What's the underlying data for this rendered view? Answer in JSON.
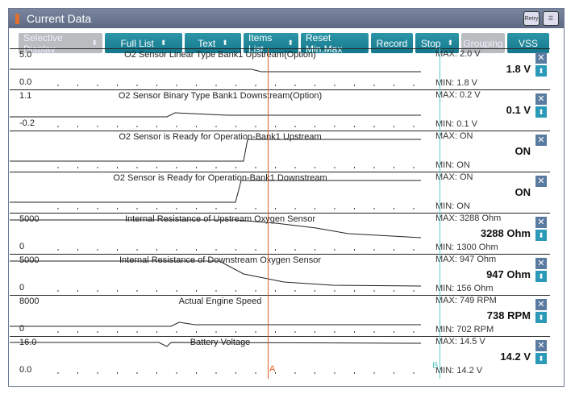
{
  "title": "Current Data",
  "title_buttons": [
    "Retry",
    "layout"
  ],
  "toolbar": [
    {
      "label": "Selective Display",
      "arrows": true,
      "disabled": true
    },
    {
      "label": "Full List",
      "arrows": true
    },
    {
      "label": "Text",
      "arrows": true
    },
    {
      "label": "Items List",
      "arrows": true
    },
    {
      "label": "Reset Min.Max"
    },
    {
      "label": "Record"
    },
    {
      "label": "Stop",
      "arrows": true
    },
    {
      "label": "Grouping",
      "disabled": true
    },
    {
      "label": "VSS"
    }
  ],
  "cursors": {
    "a": "A",
    "b": "B",
    "a_color": "#e06020",
    "b_color": "#60c8c8"
  },
  "rows": [
    {
      "name": "O2 Sensor Linear Type Bank1 Upstream(Option)",
      "ymax": "5.0",
      "ymin": "0.0",
      "max": "MAX:   2.0 V",
      "value": "1.8 V",
      "min": "MIN:   1.8 V",
      "updown": true
    },
    {
      "name": "O2 Sensor Binary Type Bank1 Downstream(Option)",
      "ymax": "1.1",
      "ymin": "-0.2",
      "max": "MAX:   0.2 V",
      "value": "0.1 V",
      "min": "MIN:   0.1 V",
      "updown": true
    },
    {
      "name": "O2 Sensor is Ready for Operation-Bank1 Upstream",
      "ymax": "",
      "ymin": "",
      "max": "MAX: ON",
      "value": "ON",
      "min": "MIN: ON",
      "updown": false
    },
    {
      "name": "O2 Sensor is Ready for Operation-Bank1 Downstream",
      "ymax": "",
      "ymin": "",
      "max": "MAX: ON",
      "value": "ON",
      "min": "MIN: ON",
      "updown": false
    },
    {
      "name": "Internal Resistance of Upstream Oxygen Sensor",
      "ymax": "5000",
      "ymin": "0",
      "max": "MAX:  3288 Ohm",
      "value": "3288 Ohm",
      "min": "MIN:  1300 Ohm",
      "updown": true
    },
    {
      "name": "Internal Resistance of Downstream Oxygen Sensor",
      "ymax": "5000",
      "ymin": "0",
      "max": "MAX:    947 Ohm",
      "value": "947 Ohm",
      "min": "MIN:    156 Ohm",
      "updown": true
    },
    {
      "name": "Actual Engine Speed",
      "ymax": "8000",
      "ymin": "0",
      "max": "MAX:    749 RPM",
      "value": "738 RPM",
      "min": "MIN:   702 RPM",
      "updown": true
    },
    {
      "name": "Battery Voltage",
      "ymax": "16.0",
      "ymin": "0.0",
      "max": "MAX:  14.5 V",
      "value": "14.2 V",
      "min": "MIN:  14.2 V",
      "updown": true
    }
  ]
}
